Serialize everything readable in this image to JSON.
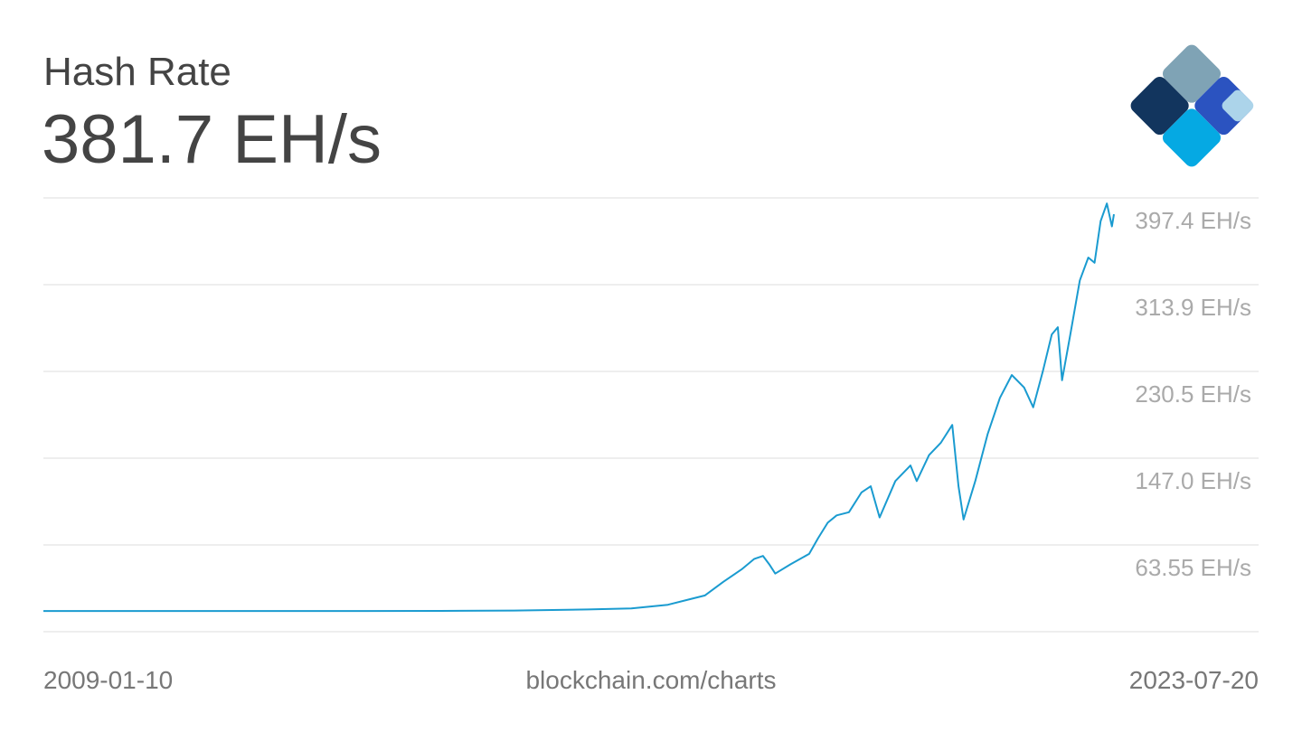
{
  "chart_data": {
    "type": "line",
    "title": "Hash Rate",
    "subtitle": "381.7 EH/s",
    "source": "blockchain.com/charts",
    "xlim": [
      "2009-01-10",
      "2023-07-20"
    ],
    "x": [
      "2009-01-10",
      "2010-06-01",
      "2012-01-01",
      "2013-06-01",
      "2014-06-01",
      "2015-06-01",
      "2016-06-01",
      "2017-01-01",
      "2017-07-01",
      "2018-01-01",
      "2018-04-01",
      "2018-07-01",
      "2018-09-01",
      "2018-10-15",
      "2018-11-15",
      "2018-12-15",
      "2019-03-01",
      "2019-06-01",
      "2019-07-15",
      "2019-09-01",
      "2019-10-15",
      "2019-12-15",
      "2020-02-15",
      "2020-04-01",
      "2020-05-15",
      "2020-08-01",
      "2020-10-15",
      "2020-11-15",
      "2021-01-15",
      "2021-03-15",
      "2021-05-10",
      "2021-06-10",
      "2021-07-05",
      "2021-09-01",
      "2021-11-01",
      "2022-01-01",
      "2022-03-01",
      "2022-05-01",
      "2022-06-15",
      "2022-08-01",
      "2022-09-15",
      "2022-10-15",
      "2022-11-05",
      "2022-12-15",
      "2023-02-01",
      "2023-03-15",
      "2023-04-15",
      "2023-05-15",
      "2023-06-15",
      "2023-07-10",
      "2023-07-20"
    ],
    "values": [
      0,
      0,
      1e-05,
      0.0001,
      0.1,
      0.4,
      1.5,
      2.5,
      6,
      15,
      28,
      40,
      50,
      53,
      45,
      36,
      45,
      55,
      70,
      85,
      92,
      95,
      114,
      120,
      90,
      125,
      140,
      125,
      150,
      162,
      179,
      120,
      88,
      125,
      170,
      205,
      227,
      215,
      196,
      230,
      266,
      273,
      222,
      265,
      318,
      340,
      335,
      375,
      392,
      370,
      381.7
    ],
    "color": "#1a9bd0",
    "ylim": [
      -19.9,
      397.4
    ],
    "yticks": [
      {
        "value": 397.4,
        "label": "397.4 EH/s"
      },
      {
        "value": 313.9,
        "label": "313.9 EH/s"
      },
      {
        "value": 230.5,
        "label": "230.5 EH/s"
      },
      {
        "value": 147.0,
        "label": "147.0 EH/s"
      },
      {
        "value": 63.55,
        "label": "63.55 EH/s"
      }
    ],
    "grid": true
  }
}
